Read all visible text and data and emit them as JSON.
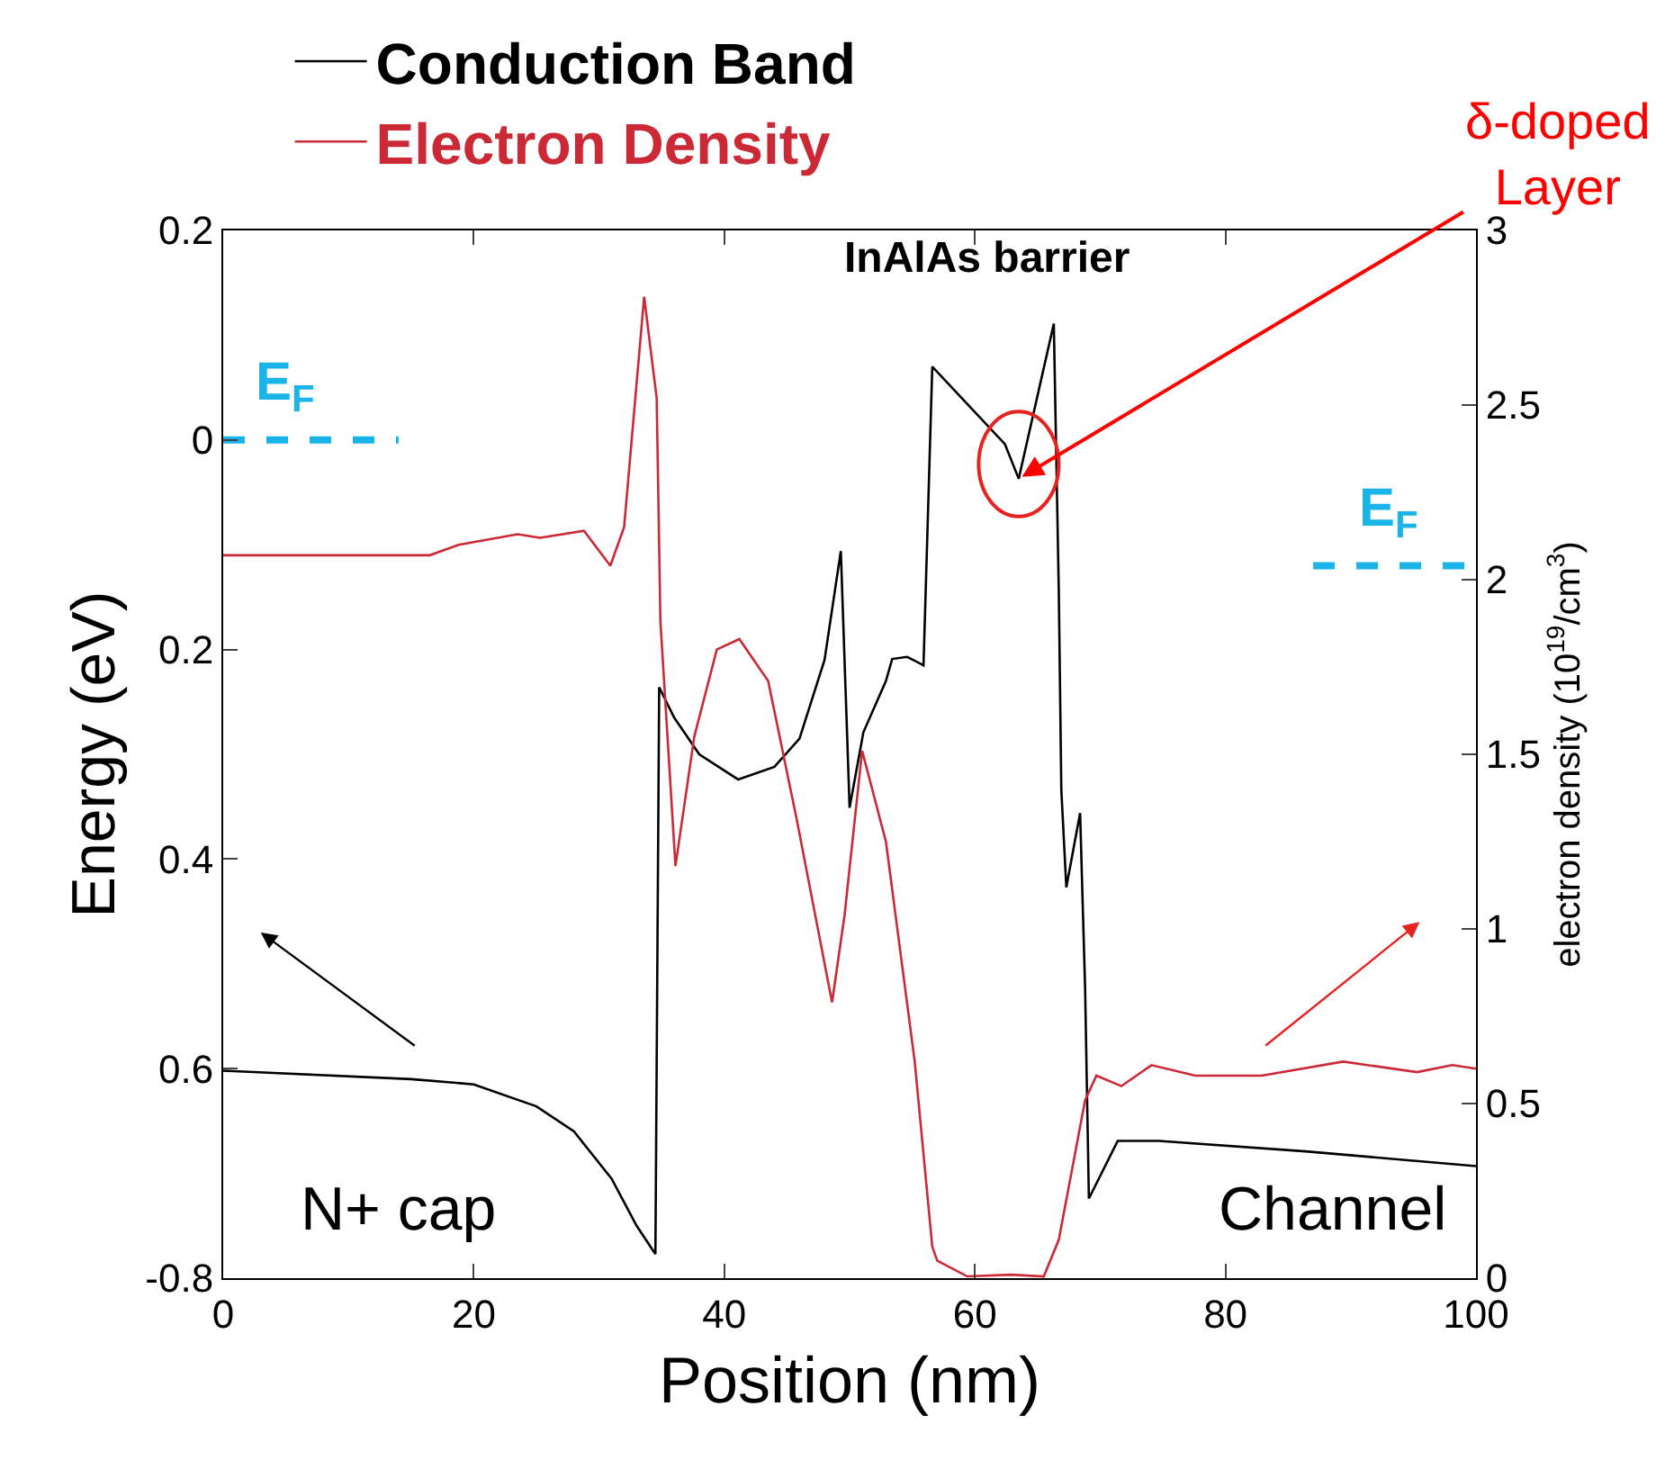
{
  "chart_data": {
    "type": "line",
    "xlabel": "Position (nm)",
    "ylabel": "Energy (eV)",
    "y2label": "electron density (10$^{19}$/cm$^{3}$)",
    "xlim": [
      0,
      100
    ],
    "xticks": [
      0,
      20,
      40,
      60,
      80,
      100
    ],
    "ylim": [
      -0.8,
      0.2
    ],
    "yticks": [
      0.2,
      0,
      {
        "value": -0.2,
        "label": "0.2"
      },
      {
        "value": -0.4,
        "label": "0.4"
      },
      {
        "value": -0.6,
        "label": "0.6"
      },
      -0.8
    ],
    "y2lim": [
      0,
      3
    ],
    "y2ticks": [
      0,
      0.5,
      1,
      1.5,
      2,
      2.5,
      3
    ],
    "grid": false,
    "legend": "top left",
    "marker": "none",
    "series": [
      {
        "name": "Conduction Band",
        "color": "#000000",
        "x": [
          0,
          15,
          20,
          25,
          28,
          31,
          33,
          34.5,
          34.8,
          36,
          38,
          41.1,
          44,
          46,
          48,
          49.3,
          50,
          51.1,
          52.9,
          53.4,
          54.6,
          55.9,
          56.6,
          62.4,
          63.5,
          66.3,
          66.7,
          66.9,
          67.3,
          68.4,
          68.8,
          69.1,
          71.4,
          74.7,
          86.4,
          100
        ],
        "values": [
          -0.602,
          -0.61,
          -0.615,
          -0.636,
          -0.66,
          -0.705,
          -0.75,
          -0.777,
          -0.236,
          -0.265,
          -0.3,
          -0.324,
          -0.312,
          -0.285,
          -0.21,
          -0.106,
          -0.351,
          -0.279,
          -0.23,
          -0.209,
          -0.207,
          -0.215,
          0.07,
          -0.004,
          -0.037,
          0.111,
          -0.145,
          -0.334,
          -0.427,
          -0.356,
          -0.524,
          -0.724,
          -0.669,
          -0.669,
          -0.679,
          -0.693
        ]
      },
      {
        "name": "Electron Density",
        "color": "#cc2936",
        "axis": "y2",
        "x": [
          0,
          16.5,
          18.8,
          23.5,
          25.3,
          28.8,
          30.9,
          32,
          33.6,
          34.6,
          34.9,
          36.1,
          37.6,
          39.4,
          41.2,
          43.5,
          45.8,
          48.6,
          49.6,
          51,
          52.9,
          55.2,
          56.6,
          57,
          59.4,
          62.9,
          65.5,
          66.7,
          68.8,
          69.7,
          71.7,
          74.1,
          77.6,
          82.9,
          89.4,
          95.3,
          98.1,
          100
        ],
        "values": [
          2.07,
          2.07,
          2.1,
          2.13,
          2.12,
          2.14,
          2.04,
          2.15,
          2.81,
          2.52,
          1.88,
          1.18,
          1.55,
          1.8,
          1.83,
          1.71,
          1.31,
          0.79,
          1.04,
          1.51,
          1.25,
          0.62,
          0.09,
          0.05,
          0.005,
          0.01,
          0.005,
          0.11,
          0.51,
          0.58,
          0.55,
          0.61,
          0.58,
          0.58,
          0.62,
          0.59,
          0.61,
          0.6
        ]
      },
      {
        "color": "#1ab4e8",
        "line_style": "dashed",
        "x": [
          0,
          14
        ],
        "values": [
          0,
          0
        ]
      },
      {
        "color": "#1ab4e8",
        "line_style": "dashed",
        "x": [
          87,
          100
        ],
        "values": [
          -0.12,
          -0.12
        ]
      }
    ],
    "annotations": [
      "InAlAs barrier",
      {
        "text": "δ-doped\nLayer",
        "x": 63.5,
        "y": -0.037
      },
      "N+ cap",
      "Channel",
      {
        "text": "E$_{F}$",
        "x": 5,
        "y": 0
      },
      {
        "text": "E$_{F}$",
        "x": 93,
        "y": -0.12
      }
    ]
  }
}
